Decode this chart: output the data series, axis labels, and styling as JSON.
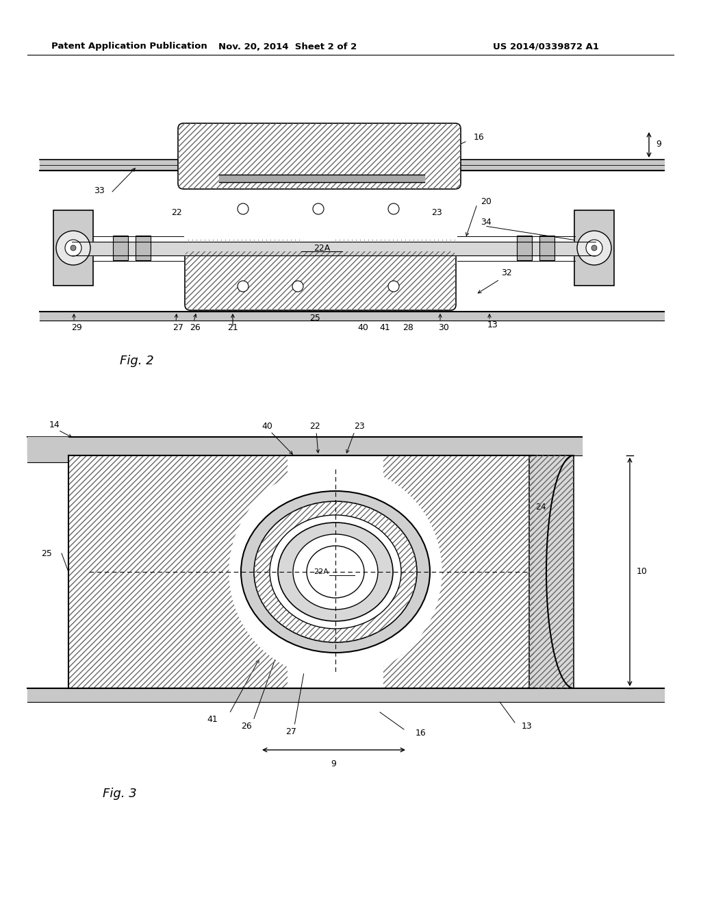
{
  "bg_color": "#ffffff",
  "line_color": "#000000",
  "header_text": "Patent Application Publication",
  "header_date": "Nov. 20, 2014  Sheet 2 of 2",
  "header_patent": "US 2014/0339872 A1",
  "fig2_label": "Fig. 2",
  "fig3_label": "Fig. 3"
}
